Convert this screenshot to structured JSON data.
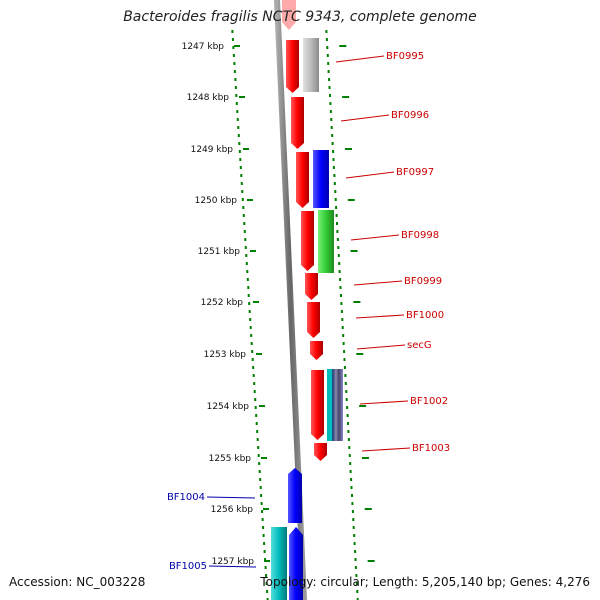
{
  "title": "Bacteroides fragilis NCTC 9343, complete genome",
  "footer": {
    "accession": "Accession: NC_003228",
    "topology": "Topology: circular; Length: 5,205,140 bp; Genes: 4,276"
  },
  "colors": {
    "forward_strand": "#ff0000",
    "reverse_blue": "#0000ff",
    "reverse_green": "#33cc33",
    "reverse_gray": "#bbbbbb",
    "reverse_cyan": "#00bbbb",
    "backbone": "#777777",
    "ticks": "#008000",
    "label_red": "#cc0000",
    "label_blue": "#0000aa"
  },
  "ruler": {
    "unit": "kbp",
    "ticks": [
      "1247 kbp",
      "1248 kbp",
      "1249 kbp",
      "1250 kbp",
      "1251 kbp",
      "1252 kbp",
      "1253 kbp",
      "1254 kbp",
      "1255 kbp",
      "1256 kbp",
      "1257 kbp"
    ]
  },
  "genes": [
    {
      "label": "BF0995",
      "strand": "-",
      "color": "#bbbbbb",
      "label_color": "#cc0000"
    },
    {
      "label": "BF0996",
      "strand": "+",
      "color": "#ff0000",
      "label_color": "#cc0000"
    },
    {
      "label": "BF0997",
      "strand": "-",
      "color": "#0000ff",
      "label_color": "#cc0000"
    },
    {
      "label": "BF0998",
      "strand": "-",
      "color": "#33cc33",
      "label_color": "#cc0000"
    },
    {
      "label": "BF0999",
      "strand": "+",
      "color": "#ff0000",
      "label_color": "#cc0000"
    },
    {
      "label": "BF1000",
      "strand": "+",
      "color": "#ff0000",
      "label_color": "#cc0000"
    },
    {
      "label": "secG",
      "strand": "+",
      "color": "#ff0000",
      "label_color": "#cc0000"
    },
    {
      "label": "BF1002",
      "strand": "-",
      "color": "#00bbbb",
      "label_color": "#cc0000"
    },
    {
      "label": "BF1003",
      "strand": "+",
      "color": "#ff0000",
      "label_color": "#cc0000"
    },
    {
      "label": "BF1004",
      "strand": "+",
      "color": "#0000ff",
      "label_color": "#0000aa"
    },
    {
      "label": "BF1005",
      "strand": "-",
      "color": "#00bbbb",
      "label_color": "#0000aa"
    }
  ]
}
